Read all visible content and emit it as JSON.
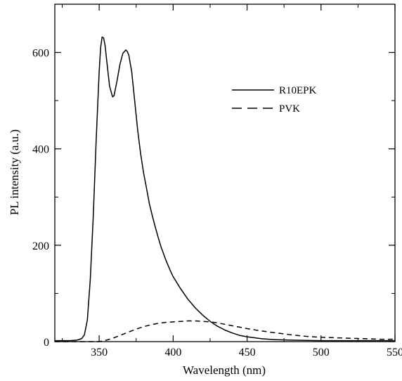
{
  "chart_data": {
    "type": "line",
    "title": "",
    "xlabel": "Wavelength (nm)",
    "ylabel": "PL intensity (a.u.)",
    "xlim": [
      320,
      550
    ],
    "ylim": [
      0,
      700
    ],
    "grid": false,
    "legend_position": "top-right",
    "x_ticks": [
      350,
      400,
      450,
      500,
      550
    ],
    "x_tick_labels": [
      "350",
      "400",
      "450",
      "500",
      "550"
    ],
    "y_ticks": [
      0,
      200,
      400,
      600
    ],
    "y_tick_labels": [
      "0",
      "200",
      "400",
      "600"
    ],
    "series": [
      {
        "name": "R10EPK",
        "style": "solid",
        "color": "#000000",
        "x": [
          320,
          330,
          335,
          338,
          340,
          342,
          344,
          346,
          348,
          350,
          351,
          352,
          353,
          354,
          355,
          357,
          359,
          360,
          362,
          364,
          366,
          368,
          369,
          370,
          372,
          374,
          376,
          378,
          380,
          382,
          384,
          386,
          388,
          390,
          392,
          395,
          398,
          400,
          405,
          410,
          415,
          420,
          425,
          430,
          435,
          440,
          445,
          450,
          460,
          470,
          480,
          500,
          525,
          550
        ],
        "y": [
          2,
          2,
          3,
          6,
          14,
          45,
          130,
          260,
          420,
          560,
          610,
          632,
          630,
          615,
          585,
          530,
          508,
          510,
          540,
          575,
          598,
          605,
          602,
          595,
          560,
          500,
          440,
          390,
          350,
          318,
          285,
          260,
          237,
          215,
          195,
          170,
          148,
          135,
          110,
          88,
          70,
          55,
          42,
          32,
          24,
          18,
          13,
          10,
          6,
          4,
          3,
          2,
          2,
          2
        ]
      },
      {
        "name": "PVK",
        "style": "dashed",
        "color": "#000000",
        "x": [
          320,
          340,
          350,
          355,
          360,
          365,
          370,
          375,
          380,
          385,
          390,
          395,
          400,
          405,
          410,
          415,
          420,
          425,
          430,
          435,
          440,
          445,
          450,
          460,
          470,
          480,
          490,
          500,
          510,
          520,
          530,
          540,
          550
        ],
        "y": [
          0,
          0,
          0,
          3,
          8,
          14,
          20,
          26,
          31,
          35,
          38,
          40,
          41,
          42,
          43,
          43,
          42,
          41,
          39,
          36,
          33,
          30,
          27,
          22,
          18,
          14,
          11,
          9,
          8,
          7,
          6,
          5,
          5
        ]
      }
    ]
  }
}
